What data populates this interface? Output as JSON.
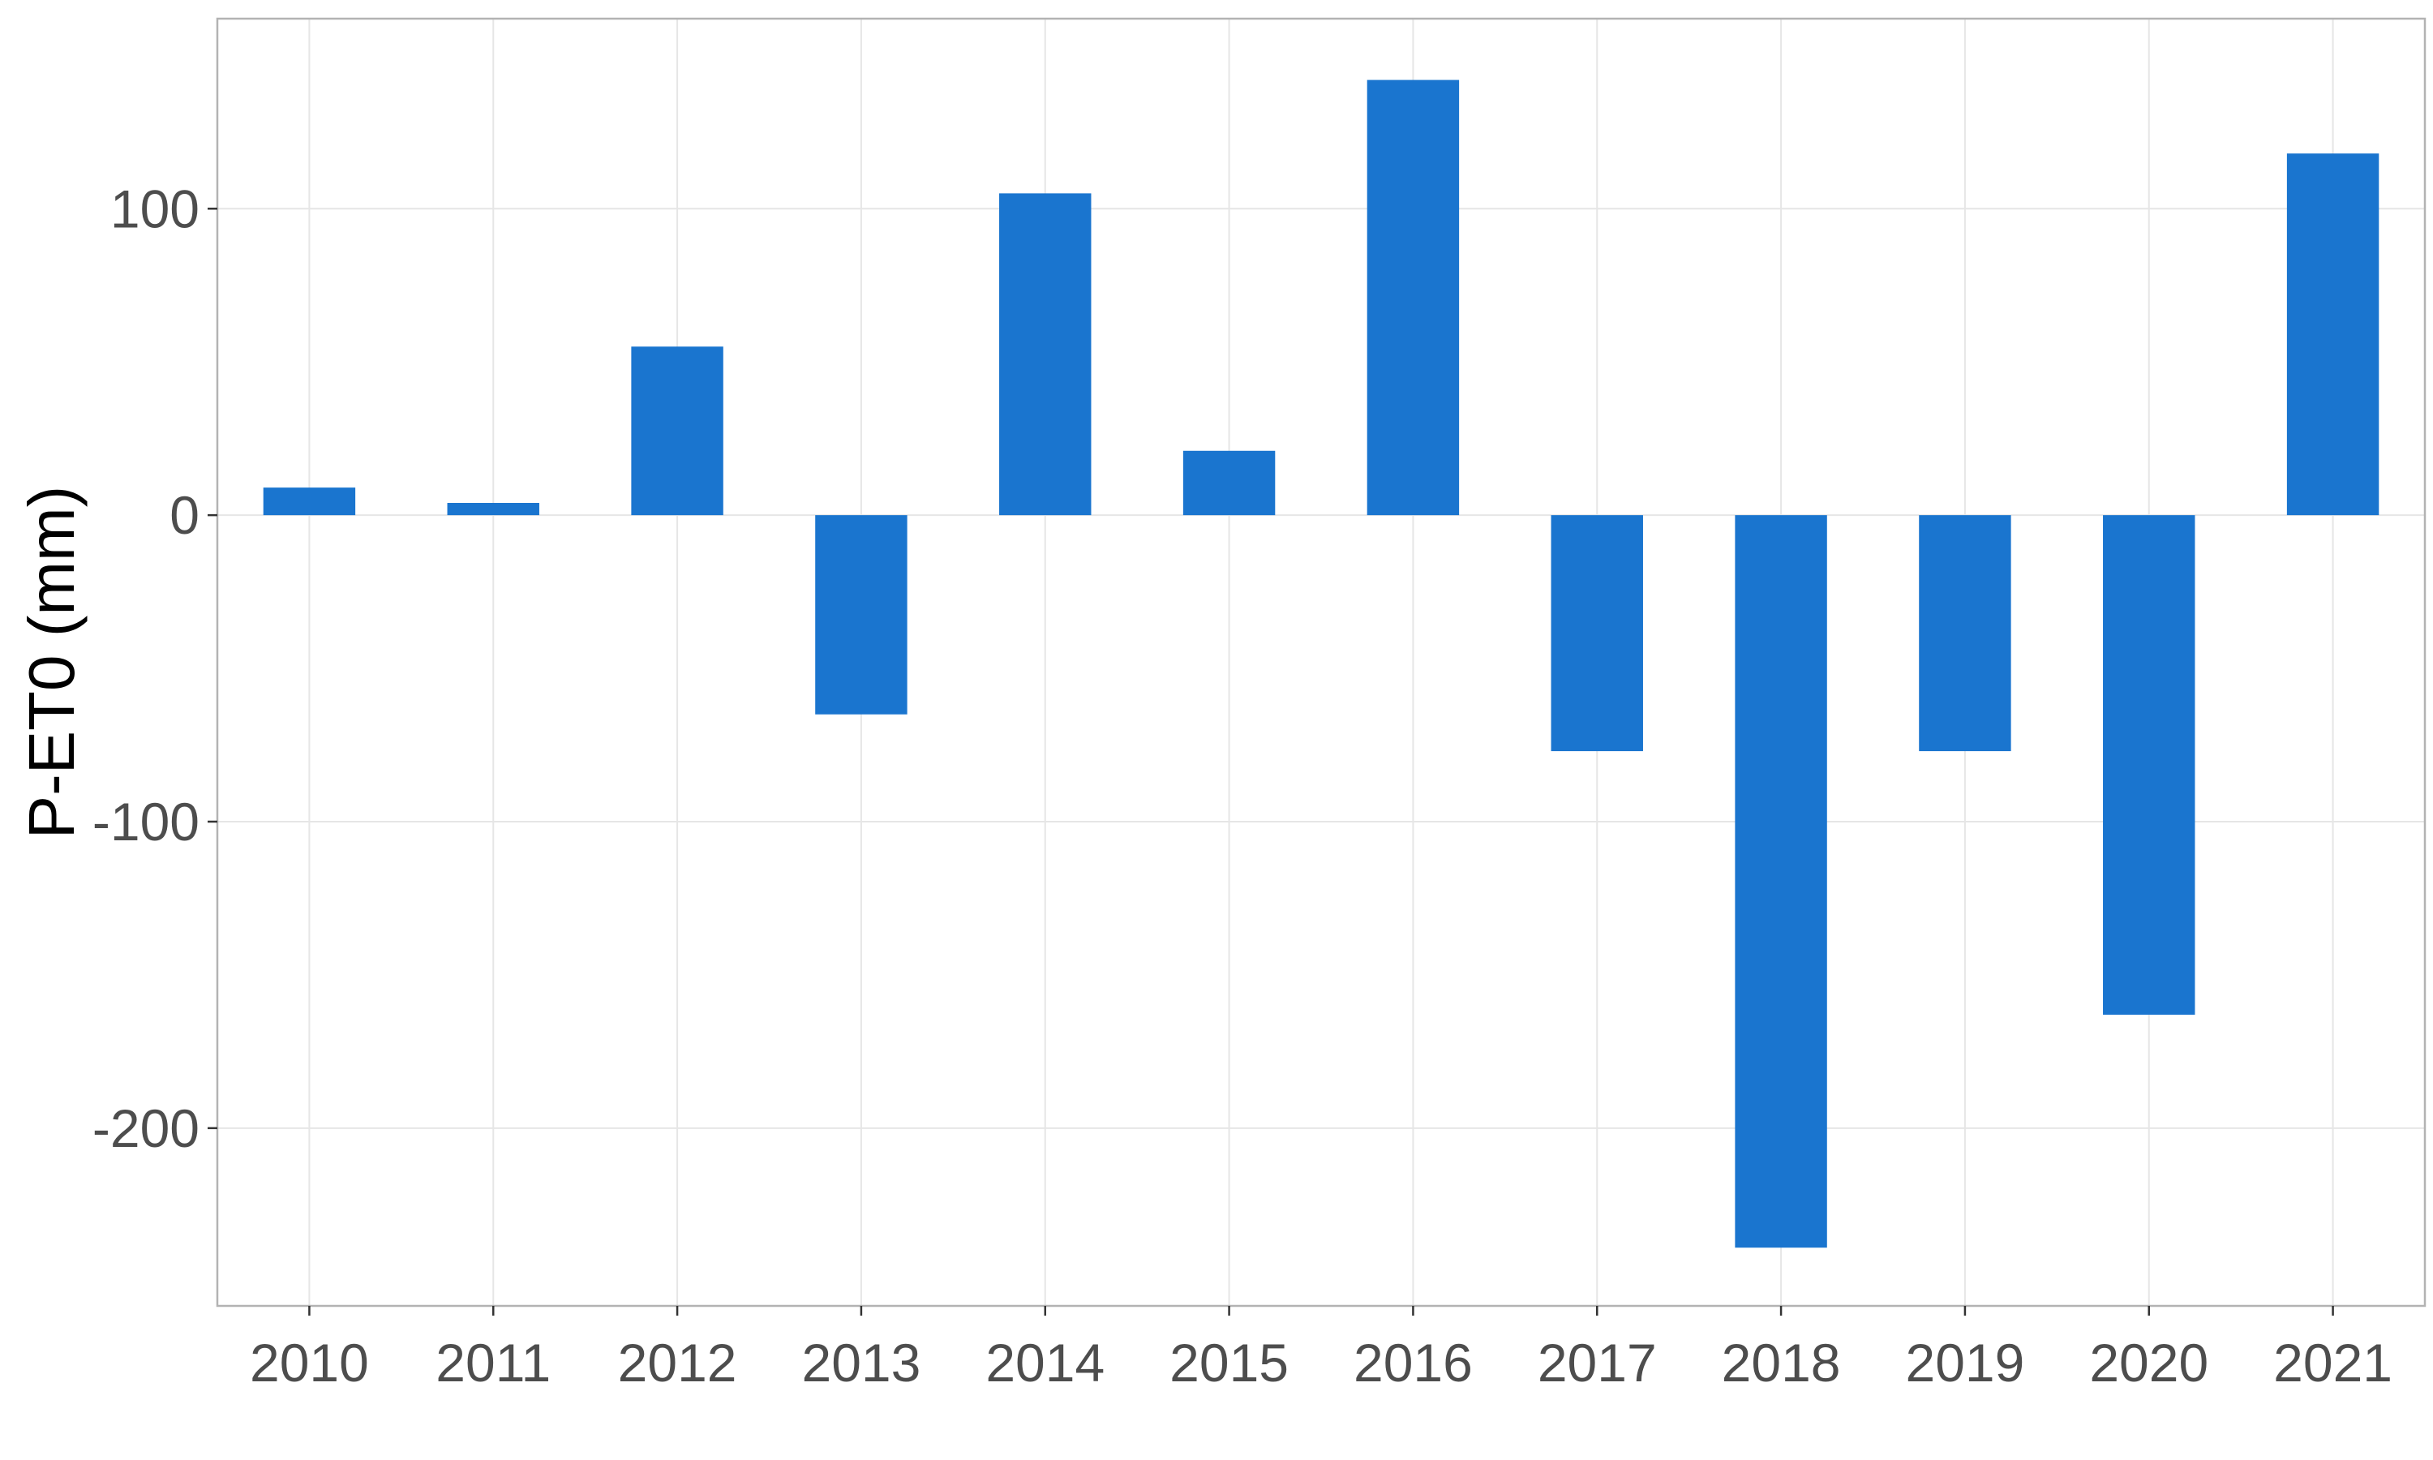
{
  "chart_data": {
    "type": "bar",
    "title": "",
    "xlabel": "",
    "ylabel": "P-ET0 (mm)",
    "categories": [
      "2010",
      "2011",
      "2012",
      "2013",
      "2014",
      "2015",
      "2016",
      "2017",
      "2018",
      "2019",
      "2020",
      "2021"
    ],
    "values": [
      9,
      4,
      55,
      -65,
      105,
      21,
      142,
      -77,
      -239,
      -77,
      -163,
      118
    ],
    "ylim": [
      -258,
      162
    ],
    "yticks": [
      -200,
      -100,
      0,
      100
    ],
    "ytick_labels": [
      "-200",
      "-100",
      "0",
      "100"
    ],
    "grid": true,
    "legend": "none",
    "colors": {
      "bar": "#1a75cf",
      "grid": "#e6e6e6",
      "panel_border": "#b3b3b3",
      "tick_text": "#4d4d4d"
    }
  }
}
